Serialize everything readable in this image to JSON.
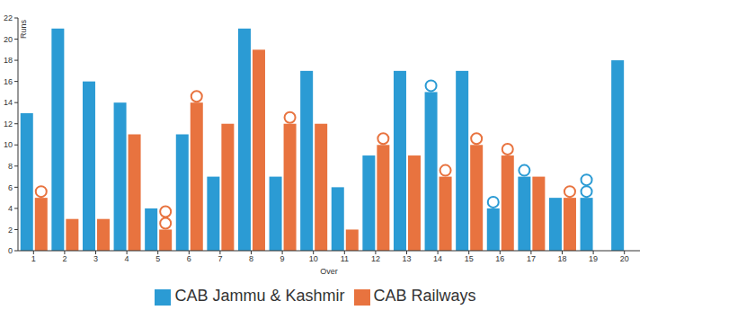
{
  "chart_data": {
    "type": "bar",
    "x_label": "Over",
    "y_label": "Runs",
    "categories": [
      "1",
      "2",
      "3",
      "4",
      "5",
      "6",
      "7",
      "8",
      "9",
      "10",
      "11",
      "12",
      "13",
      "14",
      "15",
      "16",
      "17",
      "18",
      "19",
      "20"
    ],
    "series": [
      {
        "name": "CAB Jammu & Kashmir",
        "color": "#2b9bd4",
        "values": [
          13,
          21,
          16,
          14,
          4,
          11,
          7,
          21,
          7,
          17,
          6,
          9,
          17,
          15,
          17,
          4,
          7,
          5,
          5,
          18
        ],
        "wickets": [
          0,
          0,
          0,
          0,
          0,
          0,
          0,
          0,
          0,
          0,
          0,
          0,
          0,
          1,
          0,
          1,
          1,
          0,
          2,
          0
        ]
      },
      {
        "name": "CAB Railways",
        "color": "#e8733f",
        "values": [
          5,
          3,
          3,
          11,
          2,
          14,
          12,
          19,
          12,
          12,
          2,
          10,
          9,
          7,
          10,
          9,
          7,
          5,
          null,
          null
        ],
        "wickets": [
          1,
          0,
          0,
          0,
          2,
          1,
          0,
          0,
          1,
          0,
          0,
          1,
          0,
          1,
          1,
          1,
          0,
          1,
          0,
          0
        ]
      }
    ],
    "ylim": [
      0,
      22
    ],
    "yticks": [
      0,
      2,
      4,
      6,
      8,
      10,
      12,
      14,
      16,
      18,
      20,
      22
    ],
    "grid": false,
    "legend": "bottom"
  }
}
